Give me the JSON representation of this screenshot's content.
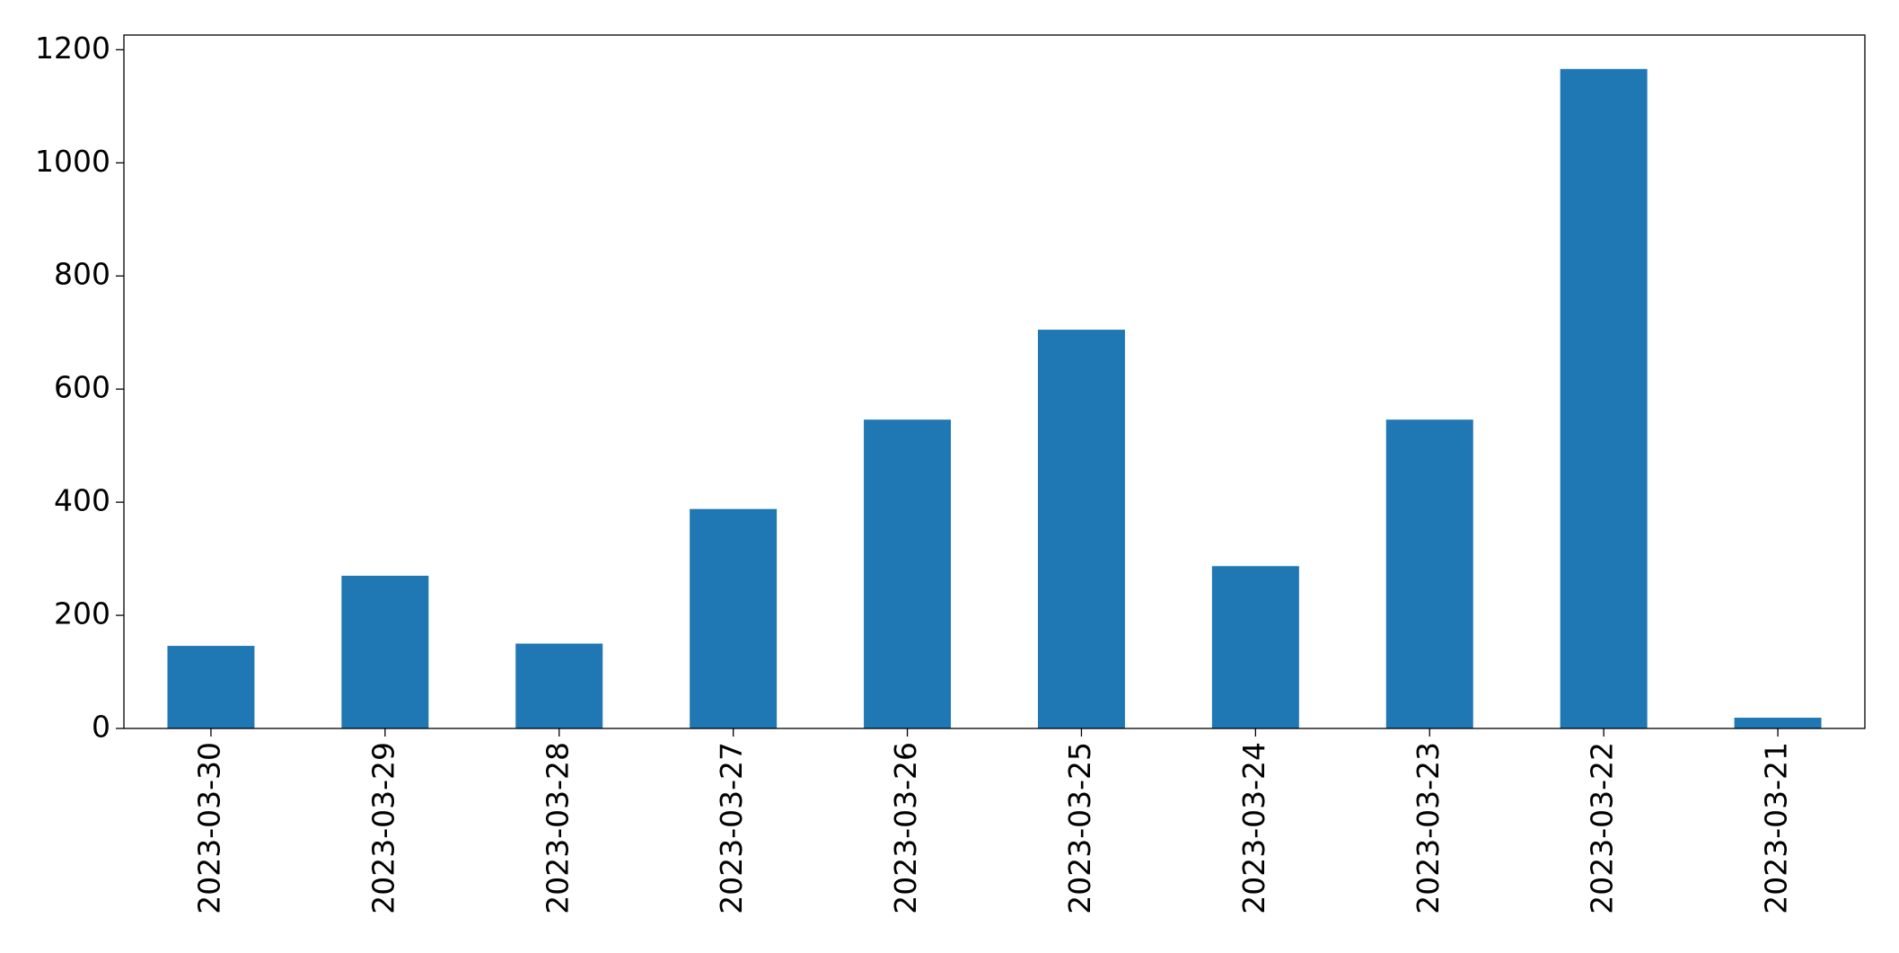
{
  "chart_data": {
    "type": "bar",
    "categories": [
      "2023-03-30",
      "2023-03-29",
      "2023-03-28",
      "2023-03-27",
      "2023-03-26",
      "2023-03-25",
      "2023-03-24",
      "2023-03-23",
      "2023-03-22",
      "2023-03-21"
    ],
    "values": [
      146,
      270,
      150,
      388,
      546,
      705,
      287,
      546,
      1166,
      19
    ],
    "color": "#1f77b4",
    "ylim": [
      0,
      1226
    ],
    "yticks": [
      0,
      200,
      400,
      600,
      800,
      1000,
      1200
    ],
    "grid": false
  }
}
